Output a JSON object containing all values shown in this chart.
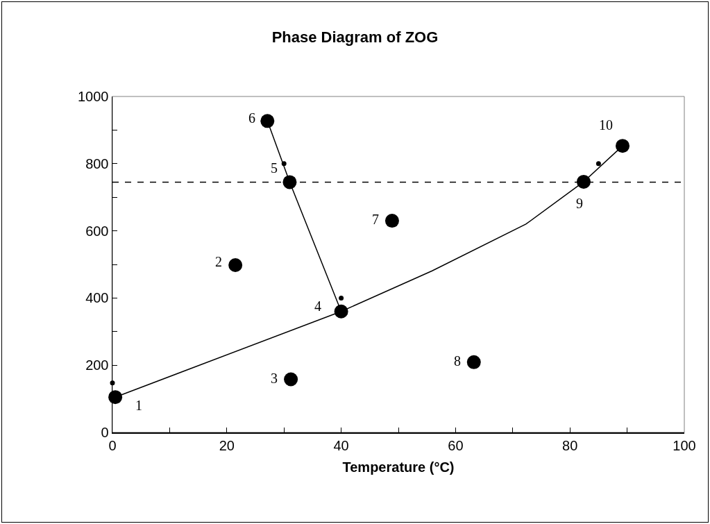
{
  "chart_data": {
    "type": "scatter",
    "title": "Phase Diagram of ZOG",
    "xlabel": "Temperature (°C)",
    "series": [
      {
        "type": "line",
        "color": "#000000",
        "marker": "none",
        "line_style": "solid",
        "x": [
          0.5,
          40,
          55.9,
          72.3,
          82.4,
          89.2
        ],
        "values": [
          105,
          360,
          481,
          620,
          746,
          853
        ]
      },
      {
        "type": "line",
        "color": "#000000",
        "marker": "none",
        "line_style": "solid",
        "x": [
          27.1,
          31.0,
          40
        ],
        "values": [
          927,
          745,
          360
        ]
      },
      {
        "color": "#000000",
        "marker": "circle",
        "x": [
          0.5,
          21.5,
          31.2,
          40,
          31.0,
          27.1,
          48.9,
          63.2,
          82.4,
          89.2
        ],
        "values": [
          105,
          498,
          158,
          360,
          745,
          927,
          630,
          209,
          746,
          853
        ]
      },
      {
        "color": "#000000",
        "marker": "circle",
        "x": [
          0,
          30,
          40,
          85
        ],
        "values": [
          147,
          800,
          400,
          800
        ]
      }
    ],
    "ref_lines": [
      {
        "axis": "y",
        "value": 745,
        "color": "#000000",
        "line_style": "dashed"
      }
    ],
    "annotations": [
      {
        "text": "1",
        "x": 0.5,
        "y": 105
      },
      {
        "text": "2",
        "x": 21.5,
        "y": 498
      },
      {
        "text": "3",
        "x": 31.2,
        "y": 158
      },
      {
        "text": "4",
        "x": 40,
        "y": 360
      },
      {
        "text": "5",
        "x": 31.0,
        "y": 745
      },
      {
        "text": "6",
        "x": 27.1,
        "y": 927
      },
      {
        "text": "7",
        "x": 48.9,
        "y": 630
      },
      {
        "text": "8",
        "x": 63.2,
        "y": 209
      },
      {
        "text": "9",
        "x": 82.4,
        "y": 746
      },
      {
        "text": "10",
        "x": 89.2,
        "y": 853
      }
    ],
    "xlim": [
      0,
      100
    ],
    "xticks": [
      0,
      {
        "value": 10,
        "label": null
      },
      20,
      {
        "value": 30,
        "label": null
      },
      40,
      {
        "value": 50,
        "label": null
      },
      60,
      {
        "value": 70,
        "label": null
      },
      80,
      {
        "value": 90,
        "label": null
      },
      100
    ],
    "ylim": [
      0,
      1000
    ],
    "yticks": [
      0,
      {
        "value": 100,
        "label": null
      },
      200,
      {
        "value": 300,
        "label": null
      },
      400,
      {
        "value": 500,
        "label": null
      },
      600,
      {
        "value": 700,
        "label": null
      },
      800,
      {
        "value": 900,
        "label": null
      },
      1000
    ],
    "grid": false
  }
}
